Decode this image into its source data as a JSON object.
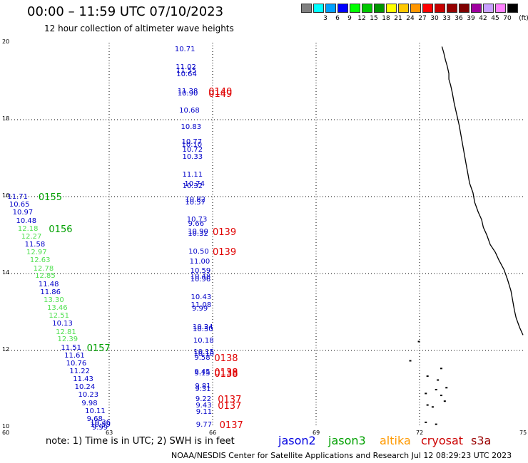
{
  "header": {
    "title": "00:00 – 11:59 UTC 07/10/2023",
    "subtitle": "12 hour collection of altimeter wave heights"
  },
  "legend": {
    "unit": "(ft)",
    "entries": [
      {
        "label": "",
        "color": "#808080"
      },
      {
        "label": "3",
        "color": "#00ffff"
      },
      {
        "label": "6",
        "color": "#00a0ff"
      },
      {
        "label": "9",
        "color": "#0000ff"
      },
      {
        "label": "12",
        "color": "#00ff00"
      },
      {
        "label": "15",
        "color": "#00c800"
      },
      {
        "label": "18",
        "color": "#009600"
      },
      {
        "label": "21",
        "color": "#ffff00"
      },
      {
        "label": "24",
        "color": "#ffc800"
      },
      {
        "label": "27",
        "color": "#ff9600"
      },
      {
        "label": "30",
        "color": "#ff0000"
      },
      {
        "label": "33",
        "color": "#c80000"
      },
      {
        "label": "36",
        "color": "#960000"
      },
      {
        "label": "39",
        "color": "#7f0000"
      },
      {
        "label": "42",
        "color": "#a000a0"
      },
      {
        "label": "45",
        "color": "#c8a0ff"
      },
      {
        "label": "70",
        "color": "#ff80ff"
      },
      {
        "label": "",
        "color": "#000000"
      }
    ]
  },
  "map": {
    "lon_range": [
      60,
      75
    ],
    "lat_range": [
      10,
      20
    ],
    "lon_ticks": [
      "60",
      "63",
      "66",
      "69",
      "72",
      "75"
    ],
    "lat_ticks": [
      "10",
      "12",
      "14",
      "16",
      "18",
      "20"
    ],
    "grid": true,
    "colors": {
      "blue": "#0000c8",
      "green": "#00a000",
      "lightgreen": "#50e050",
      "red": "#e00000"
    },
    "tracks": [
      {
        "lon": 64.9,
        "lat": 19.82,
        "value": "10.71",
        "color": "blue"
      },
      {
        "lon": 64.93,
        "lat": 19.35,
        "value": "11.02",
        "color": "blue"
      },
      {
        "lon": 64.94,
        "lat": 19.26,
        "value": "11.55",
        "color": "blue"
      },
      {
        "lon": 64.95,
        "lat": 19.17,
        "value": "10.64",
        "color": "blue"
      },
      {
        "lon": 64.98,
        "lat": 18.73,
        "value": "11.38",
        "color": "blue"
      },
      {
        "lon": 64.98,
        "lat": 18.67,
        "value": "10.90",
        "color": "blue"
      },
      {
        "lon": 65.03,
        "lat": 18.23,
        "value": "10.68",
        "color": "blue"
      },
      {
        "lon": 65.08,
        "lat": 17.8,
        "value": "10.83",
        "color": "blue"
      },
      {
        "lon": 65.1,
        "lat": 17.4,
        "value": "10.77",
        "color": "blue"
      },
      {
        "lon": 65.1,
        "lat": 17.33,
        "value": "10.10",
        "color": "blue"
      },
      {
        "lon": 65.12,
        "lat": 17.2,
        "value": "10.72",
        "color": "blue"
      },
      {
        "lon": 65.12,
        "lat": 17.02,
        "value": "10.33",
        "color": "blue"
      },
      {
        "lon": 65.12,
        "lat": 16.55,
        "value": "11.11",
        "color": "blue"
      },
      {
        "lon": 65.18,
        "lat": 16.32,
        "value": "10.74",
        "color": "blue"
      },
      {
        "lon": 65.12,
        "lat": 16.26,
        "value": "10.32",
        "color": "blue"
      },
      {
        "lon": 65.2,
        "lat": 15.9,
        "value": "10.82",
        "color": "blue"
      },
      {
        "lon": 65.2,
        "lat": 15.84,
        "value": "10.57",
        "color": "blue"
      },
      {
        "lon": 65.25,
        "lat": 15.38,
        "value": "10.73",
        "color": "blue"
      },
      {
        "lon": 65.29,
        "lat": 15.28,
        "value": "9.66",
        "color": "blue"
      },
      {
        "lon": 65.28,
        "lat": 15.08,
        "value": "10.90",
        "color": "blue"
      },
      {
        "lon": 65.28,
        "lat": 15.02,
        "value": "10.32",
        "color": "blue"
      },
      {
        "lon": 65.3,
        "lat": 14.55,
        "value": "10.50",
        "color": "blue"
      },
      {
        "lon": 65.33,
        "lat": 14.3,
        "value": "11.00",
        "color": "blue"
      },
      {
        "lon": 65.35,
        "lat": 14.05,
        "value": "10.59",
        "color": "blue"
      },
      {
        "lon": 65.35,
        "lat": 13.9,
        "value": "10.48",
        "color": "blue"
      },
      {
        "lon": 65.35,
        "lat": 13.84,
        "value": "10.96",
        "color": "blue"
      },
      {
        "lon": 65.37,
        "lat": 13.37,
        "value": "10.43",
        "color": "blue"
      },
      {
        "lon": 65.37,
        "lat": 13.17,
        "value": "11.08",
        "color": "blue"
      },
      {
        "lon": 65.4,
        "lat": 13.08,
        "value": "9.99",
        "color": "blue"
      },
      {
        "lon": 65.42,
        "lat": 12.95,
        "value": "",
        "color": "blue"
      },
      {
        "lon": 65.42,
        "lat": 12.6,
        "value": "10.24",
        "color": "blue"
      },
      {
        "lon": 65.42,
        "lat": 12.53,
        "value": "10.30",
        "color": "blue"
      },
      {
        "lon": 65.44,
        "lat": 12.25,
        "value": "10.18",
        "color": "blue"
      },
      {
        "lon": 65.45,
        "lat": 11.95,
        "value": "10.15",
        "color": "blue"
      },
      {
        "lon": 65.45,
        "lat": 11.89,
        "value": "10.10",
        "color": "blue"
      },
      {
        "lon": 65.47,
        "lat": 11.8,
        "value": "9.58",
        "color": "blue"
      },
      {
        "lon": 65.47,
        "lat": 11.42,
        "value": "9.45",
        "color": "blue"
      },
      {
        "lon": 65.47,
        "lat": 11.38,
        "value": "9.15",
        "color": "blue"
      },
      {
        "lon": 65.49,
        "lat": 11.05,
        "value": "9.81",
        "color": "blue"
      },
      {
        "lon": 65.49,
        "lat": 10.98,
        "value": "9.31",
        "color": "blue"
      },
      {
        "lon": 65.5,
        "lat": 10.73,
        "value": "9.22",
        "color": "blue"
      },
      {
        "lon": 65.51,
        "lat": 10.56,
        "value": "9.43",
        "color": "blue"
      },
      {
        "lon": 65.52,
        "lat": 10.39,
        "value": "9.11",
        "color": "blue"
      },
      {
        "lon": 65.52,
        "lat": 10.06,
        "value": "9.77",
        "color": "blue"
      },
      {
        "lon": 60.05,
        "lat": 15.98,
        "value": "11.71",
        "color": "blue"
      },
      {
        "lon": 60.1,
        "lat": 15.77,
        "value": "10.65",
        "color": "blue"
      },
      {
        "lon": 60.2,
        "lat": 15.57,
        "value": "10.97",
        "color": "blue"
      },
      {
        "lon": 60.3,
        "lat": 15.36,
        "value": "10.48",
        "color": "blue"
      },
      {
        "lon": 60.35,
        "lat": 15.15,
        "value": "12.18",
        "color": "lightgreen"
      },
      {
        "lon": 60.45,
        "lat": 14.95,
        "value": "12.27",
        "color": "lightgreen"
      },
      {
        "lon": 60.55,
        "lat": 14.74,
        "value": "11.58",
        "color": "blue"
      },
      {
        "lon": 60.6,
        "lat": 14.54,
        "value": "12.97",
        "color": "lightgreen"
      },
      {
        "lon": 60.7,
        "lat": 14.33,
        "value": "12.63",
        "color": "lightgreen"
      },
      {
        "lon": 60.8,
        "lat": 14.12,
        "value": "12.78",
        "color": "lightgreen"
      },
      {
        "lon": 60.85,
        "lat": 13.92,
        "value": "12.85",
        "color": "lightgreen"
      },
      {
        "lon": 60.95,
        "lat": 13.71,
        "value": "11.48",
        "color": "blue"
      },
      {
        "lon": 61.0,
        "lat": 13.5,
        "value": "11.86",
        "color": "blue"
      },
      {
        "lon": 61.1,
        "lat": 13.3,
        "value": "13.30",
        "color": "lightgreen"
      },
      {
        "lon": 61.2,
        "lat": 13.09,
        "value": "13.46",
        "color": "lightgreen"
      },
      {
        "lon": 61.25,
        "lat": 12.89,
        "value": "12.51",
        "color": "lightgreen"
      },
      {
        "lon": 61.35,
        "lat": 12.68,
        "value": "10.13",
        "color": "blue"
      },
      {
        "lon": 61.45,
        "lat": 12.47,
        "value": "12.81",
        "color": "lightgreen"
      },
      {
        "lon": 61.5,
        "lat": 12.27,
        "value": "12.39",
        "color": "lightgreen"
      },
      {
        "lon": 61.6,
        "lat": 12.06,
        "value": "11.51",
        "color": "blue"
      },
      {
        "lon": 61.7,
        "lat": 11.86,
        "value": "11.61",
        "color": "blue"
      },
      {
        "lon": 61.75,
        "lat": 11.65,
        "value": "10.76",
        "color": "blue"
      },
      {
        "lon": 61.85,
        "lat": 11.44,
        "value": "11.22",
        "color": "blue"
      },
      {
        "lon": 61.95,
        "lat": 11.24,
        "value": "11.43",
        "color": "blue"
      },
      {
        "lon": 62.0,
        "lat": 11.03,
        "value": "10.24",
        "color": "blue"
      },
      {
        "lon": 62.1,
        "lat": 10.83,
        "value": "10.23",
        "color": "blue"
      },
      {
        "lon": 62.2,
        "lat": 10.62,
        "value": "9.98",
        "color": "blue"
      },
      {
        "lon": 62.3,
        "lat": 10.41,
        "value": "10.11",
        "color": "blue"
      },
      {
        "lon": 62.35,
        "lat": 10.21,
        "value": "9.68",
        "color": "blue"
      },
      {
        "lon": 62.45,
        "lat": 10.12,
        "value": "10.36",
        "color": "blue"
      },
      {
        "lon": 62.45,
        "lat": 10.06,
        "value": "10.59",
        "color": "blue"
      },
      {
        "lon": 62.5,
        "lat": 9.99,
        "value": "9.99",
        "color": "blue"
      }
    ],
    "cycles": [
      {
        "lon": 60.95,
        "lat": 15.98,
        "label": "0155",
        "color": "green"
      },
      {
        "lon": 61.25,
        "lat": 15.15,
        "label": "0156",
        "color": "green"
      },
      {
        "lon": 62.35,
        "lat": 12.06,
        "label": "0157",
        "color": "green"
      },
      {
        "lon": 65.88,
        "lat": 18.73,
        "label": "0140",
        "color": "red"
      },
      {
        "lon": 65.88,
        "lat": 18.67,
        "label": "0149",
        "color": "red"
      },
      {
        "lon": 66.0,
        "lat": 15.08,
        "label": "0139",
        "color": "red"
      },
      {
        "lon": 66.0,
        "lat": 14.55,
        "label": "0139",
        "color": "red"
      },
      {
        "lon": 66.05,
        "lat": 11.8,
        "label": "0138",
        "color": "red"
      },
      {
        "lon": 66.05,
        "lat": 11.42,
        "label": "0138",
        "color": "red"
      },
      {
        "lon": 66.05,
        "lat": 11.38,
        "label": "0138",
        "color": "red"
      },
      {
        "lon": 66.15,
        "lat": 10.73,
        "label": "0137",
        "color": "red"
      },
      {
        "lon": 66.15,
        "lat": 10.56,
        "label": "0137",
        "color": "red"
      },
      {
        "lon": 66.2,
        "lat": 10.06,
        "label": "0137",
        "color": "red"
      }
    ],
    "coastline": [
      [
        72.65,
        19.9
      ],
      [
        72.7,
        19.75
      ],
      [
        72.75,
        19.55
      ],
      [
        72.8,
        19.4
      ],
      [
        72.85,
        19.2
      ],
      [
        72.85,
        19.05
      ],
      [
        72.9,
        18.9
      ],
      [
        72.95,
        18.7
      ],
      [
        73.0,
        18.45
      ],
      [
        73.05,
        18.25
      ],
      [
        73.1,
        18.05
      ],
      [
        73.15,
        17.85
      ],
      [
        73.2,
        17.6
      ],
      [
        73.25,
        17.35
      ],
      [
        73.3,
        17.1
      ],
      [
        73.35,
        16.85
      ],
      [
        73.4,
        16.6
      ],
      [
        73.45,
        16.35
      ],
      [
        73.55,
        16.1
      ],
      [
        73.6,
        15.85
      ],
      [
        73.7,
        15.6
      ],
      [
        73.8,
        15.4
      ],
      [
        73.85,
        15.2
      ],
      [
        73.95,
        15.0
      ],
      [
        74.05,
        14.75
      ],
      [
        74.2,
        14.55
      ],
      [
        74.3,
        14.35
      ],
      [
        74.45,
        14.1
      ],
      [
        74.55,
        13.85
      ],
      [
        74.65,
        13.55
      ],
      [
        74.7,
        13.3
      ],
      [
        74.75,
        13.05
      ],
      [
        74.8,
        12.85
      ],
      [
        74.9,
        12.6
      ],
      [
        75.0,
        12.4
      ]
    ],
    "islands": [
      [
        71.95,
        12.25
      ],
      [
        71.7,
        11.75
      ],
      [
        72.2,
        11.35
      ],
      [
        72.6,
        11.55
      ],
      [
        72.5,
        11.25
      ],
      [
        72.75,
        11.05
      ],
      [
        72.45,
        11.0
      ],
      [
        72.15,
        10.9
      ],
      [
        72.6,
        10.85
      ],
      [
        72.2,
        10.6
      ],
      [
        72.35,
        10.55
      ],
      [
        72.15,
        10.15
      ],
      [
        72.7,
        10.7
      ],
      [
        72.45,
        10.1
      ]
    ]
  },
  "footer": {
    "note": "note: 1) Time is in UTC; 2) SWH is in feet",
    "satellites": [
      {
        "name": "jason2",
        "color": "#0000e0"
      },
      {
        "name": "jason3",
        "color": "#00a000"
      },
      {
        "name": "altika",
        "color": "#ff9900"
      },
      {
        "name": "cryosat",
        "color": "#cc0000"
      },
      {
        "name": "s3a",
        "color": "#990000"
      }
    ],
    "credit": "NOAA/NESDIS Center for Satellite Applications and Research    Jul 12 08:29:23 UTC 2023"
  }
}
